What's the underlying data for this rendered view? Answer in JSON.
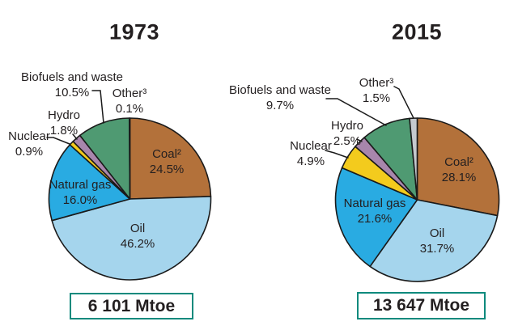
{
  "chart_data": [
    {
      "type": "pie",
      "title": "1973",
      "total_label": "6 101 Mtoe",
      "unit": "Mtoe",
      "categories": [
        "Coal²",
        "Oil",
        "Natural gas",
        "Nuclear",
        "Hydro",
        "Biofuels and waste",
        "Other³"
      ],
      "values": [
        24.5,
        46.2,
        16.0,
        0.9,
        1.8,
        10.5,
        0.1
      ],
      "pct_labels": [
        "24.5%",
        "46.2%",
        "16.0%",
        "0.9%",
        "1.8%",
        "10.5%",
        "0.1%"
      ],
      "colors": [
        "#B3713A",
        "#A5D5ED",
        "#29ABE2",
        "#F3CB1D",
        "#A886AC",
        "#4F9A72",
        "#C5C9CE"
      ],
      "start_angle_deg": 0,
      "direction": "clockwise",
      "legend": "none"
    },
    {
      "type": "pie",
      "title": "2015",
      "total_label": "13 647 Mtoe",
      "unit": "Mtoe",
      "categories": [
        "Coal²",
        "Oil",
        "Natural gas",
        "Nuclear",
        "Hydro",
        "Biofuels and waste",
        "Other³"
      ],
      "values": [
        28.1,
        31.7,
        21.6,
        4.9,
        2.5,
        9.7,
        1.5
      ],
      "pct_labels": [
        "28.1%",
        "31.7%",
        "21.6%",
        "4.9%",
        "2.5%",
        "9.7%",
        "1.5%"
      ],
      "colors": [
        "#B3713A",
        "#A5D5ED",
        "#29ABE2",
        "#F3CB1D",
        "#A886AC",
        "#4F9A72",
        "#C5C9CE"
      ],
      "start_angle_deg": 0,
      "direction": "clockwise",
      "legend": "none"
    }
  ],
  "styles": {
    "background": "#FFFFFF",
    "text_color": "#231F20",
    "slice_outline": "#1A1A1A",
    "total_box_border": "#0E8A7D"
  }
}
